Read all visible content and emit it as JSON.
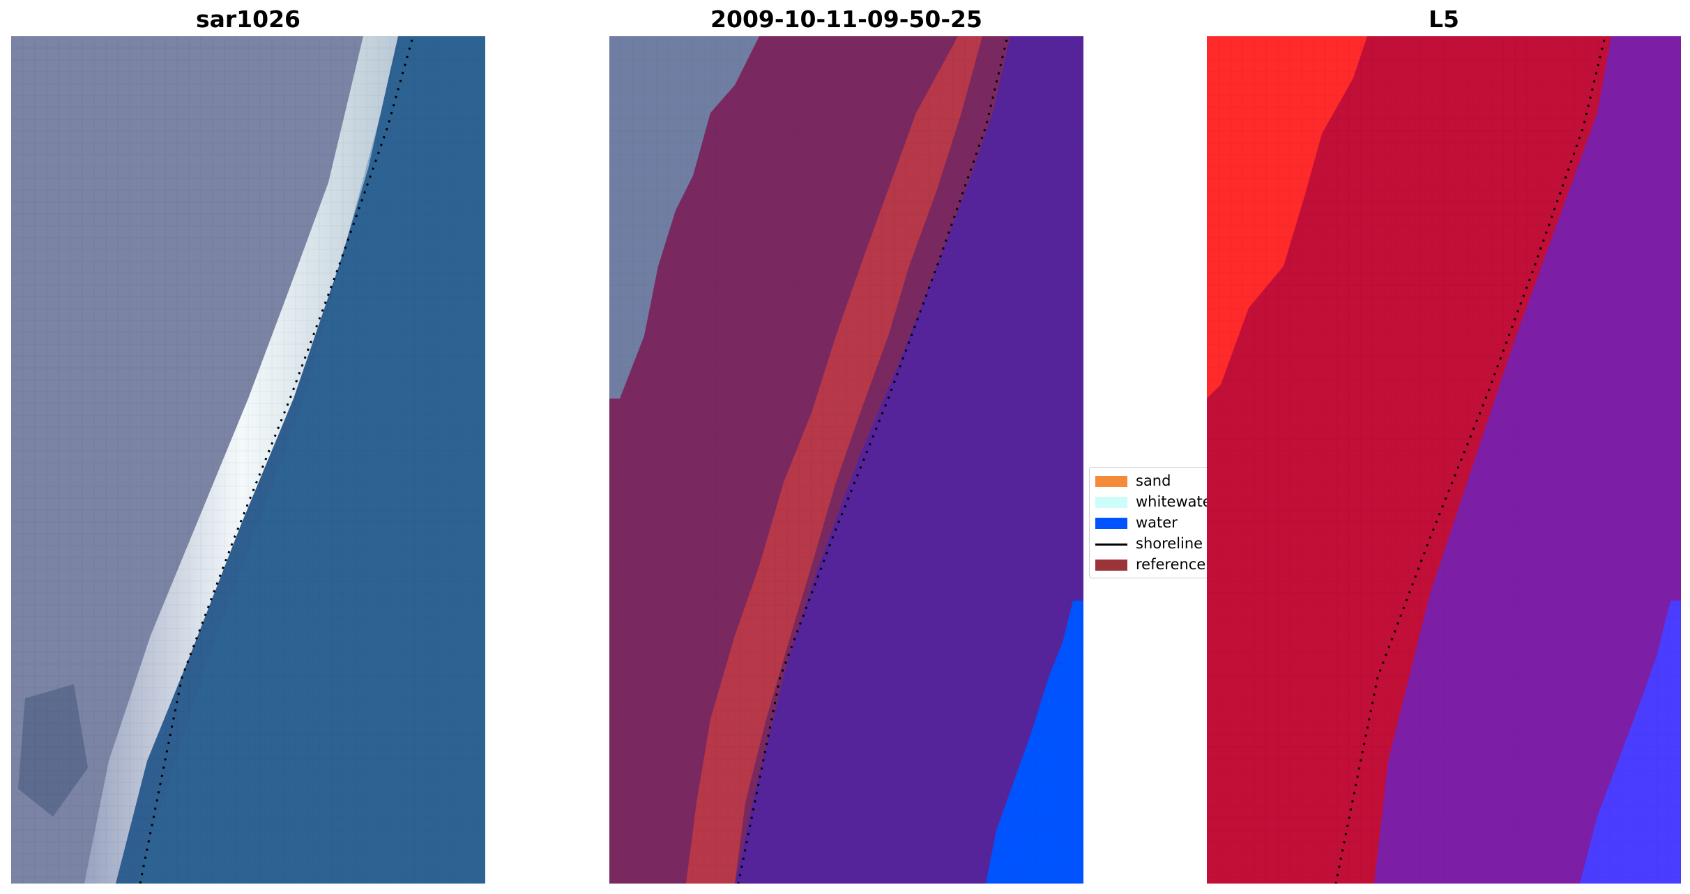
{
  "panels": [
    {
      "title": "sar1026"
    },
    {
      "title": "2009-10-11-09-50-25"
    },
    {
      "title": "L5"
    }
  ],
  "legend": {
    "items": [
      {
        "label": "sand",
        "color": "#f58a3a",
        "kind": "patch"
      },
      {
        "label": "whitewater",
        "color": "#ccfdf9",
        "kind": "patch"
      },
      {
        "label": "water",
        "color": "#0054ff",
        "kind": "patch"
      },
      {
        "label": "shoreline",
        "color": "#000000",
        "kind": "line"
      },
      {
        "label": "reference",
        "color": "#9a3438",
        "kind": "patch"
      }
    ]
  },
  "colors": {
    "land_rgb": "#7b84a4",
    "surf_rgb": "#eef4f6",
    "sea_rgb": "#2f5f90",
    "land_class": "#7a2960",
    "reference_class": "#b63849",
    "water_class": "#55249b",
    "water_overlay": "#0054ff",
    "mndwi_high": "#ff2a2a",
    "mndwi_mid": "#c10f38",
    "mndwi_low": "#7d1fa6",
    "mndwi_water": "#4a3dff",
    "shoreline": "#000000"
  }
}
